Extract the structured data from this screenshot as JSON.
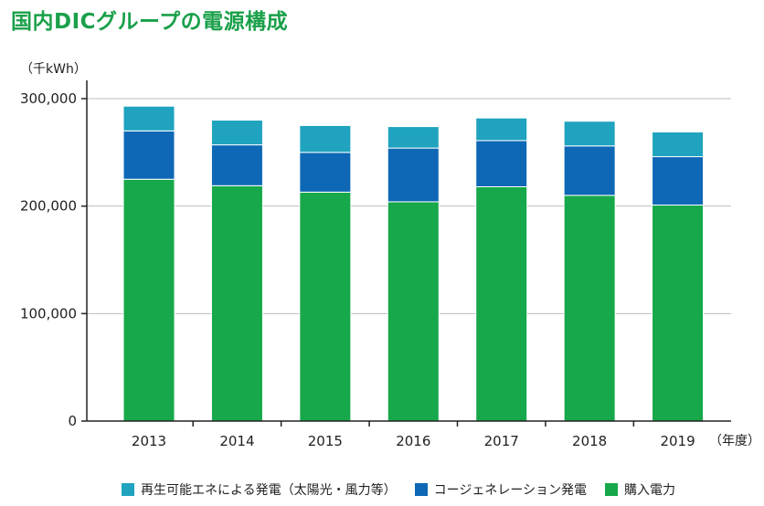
{
  "chart_data": {
    "type": "bar",
    "stacked": true,
    "title": "国内DICグループの電源構成",
    "unit_label": "（千kWh）",
    "x_unit_label": "（年度）",
    "categories": [
      "2013",
      "2014",
      "2015",
      "2016",
      "2017",
      "2018",
      "2019"
    ],
    "series": [
      {
        "name": "購入電力",
        "color": "#16a84a",
        "values": [
          225000,
          219000,
          213000,
          204000,
          218000,
          210000,
          201000
        ]
      },
      {
        "name": "コージェネレーション発電",
        "color": "#0e68b5",
        "values": [
          45000,
          38000,
          37000,
          50000,
          43000,
          46000,
          45000
        ]
      },
      {
        "name": "再生可能エネによる発電（太陽光・風力等）",
        "color": "#1fa3bf",
        "values": [
          23000,
          23000,
          25000,
          20000,
          21000,
          23000,
          23000
        ]
      }
    ],
    "yticks": [
      0,
      100000,
      200000,
      300000
    ],
    "ytick_labels": [
      "0",
      "100,000",
      "200,000",
      "300,000"
    ],
    "ylim": [
      0,
      300000
    ],
    "grid": true,
    "legend_position": "bottom",
    "legend_order": [
      2,
      1,
      0
    ]
  }
}
